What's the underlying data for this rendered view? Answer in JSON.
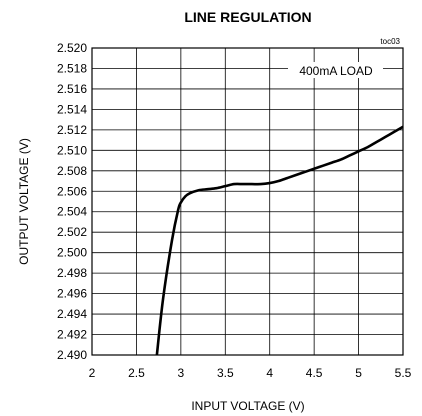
{
  "chart_data": {
    "type": "line",
    "title": "LINE REGULATION",
    "xlabel": "INPUT VOLTAGE (V)",
    "ylabel": "OUTPUT VOLTAGE (V)",
    "xlim": [
      2,
      5.5
    ],
    "ylim": [
      2.49,
      2.52
    ],
    "x_ticks": [
      "2",
      "2.5",
      "3",
      "3.5",
      "4",
      "4.5",
      "5",
      "5.5"
    ],
    "y_ticks": [
      "2.520",
      "2.518",
      "2.516",
      "2.514",
      "2.512",
      "2.510",
      "2.508",
      "2.506",
      "2.504",
      "2.502",
      "2.500",
      "2.498",
      "2.496",
      "2.494",
      "2.492",
      "2.490"
    ],
    "grid": true,
    "annotations": [
      "toc03",
      "400mA LOAD"
    ],
    "series": [
      {
        "name": "400mA LOAD",
        "color": "#000000",
        "x": [
          2.73,
          2.8,
          2.9,
          2.97,
          3.0,
          3.05,
          3.1,
          3.2,
          3.3,
          3.4,
          3.5,
          3.6,
          3.7,
          3.8,
          3.9,
          4.0,
          4.1,
          4.2,
          4.3,
          4.4,
          4.5,
          4.6,
          4.7,
          4.8,
          4.9,
          5.0,
          5.1,
          5.2,
          5.3,
          5.4,
          5.5
        ],
        "y": [
          2.49,
          2.4955,
          2.5012,
          2.5042,
          2.5049,
          2.5055,
          2.5058,
          2.5061,
          2.5062,
          2.5063,
          2.5065,
          2.5067,
          2.5067,
          2.5067,
          2.5067,
          2.5068,
          2.507,
          2.5073,
          2.5076,
          2.5079,
          2.5082,
          2.5085,
          2.5088,
          2.5091,
          2.5095,
          2.5099,
          2.5103,
          2.5108,
          2.5113,
          2.5118,
          2.5123
        ]
      }
    ]
  }
}
